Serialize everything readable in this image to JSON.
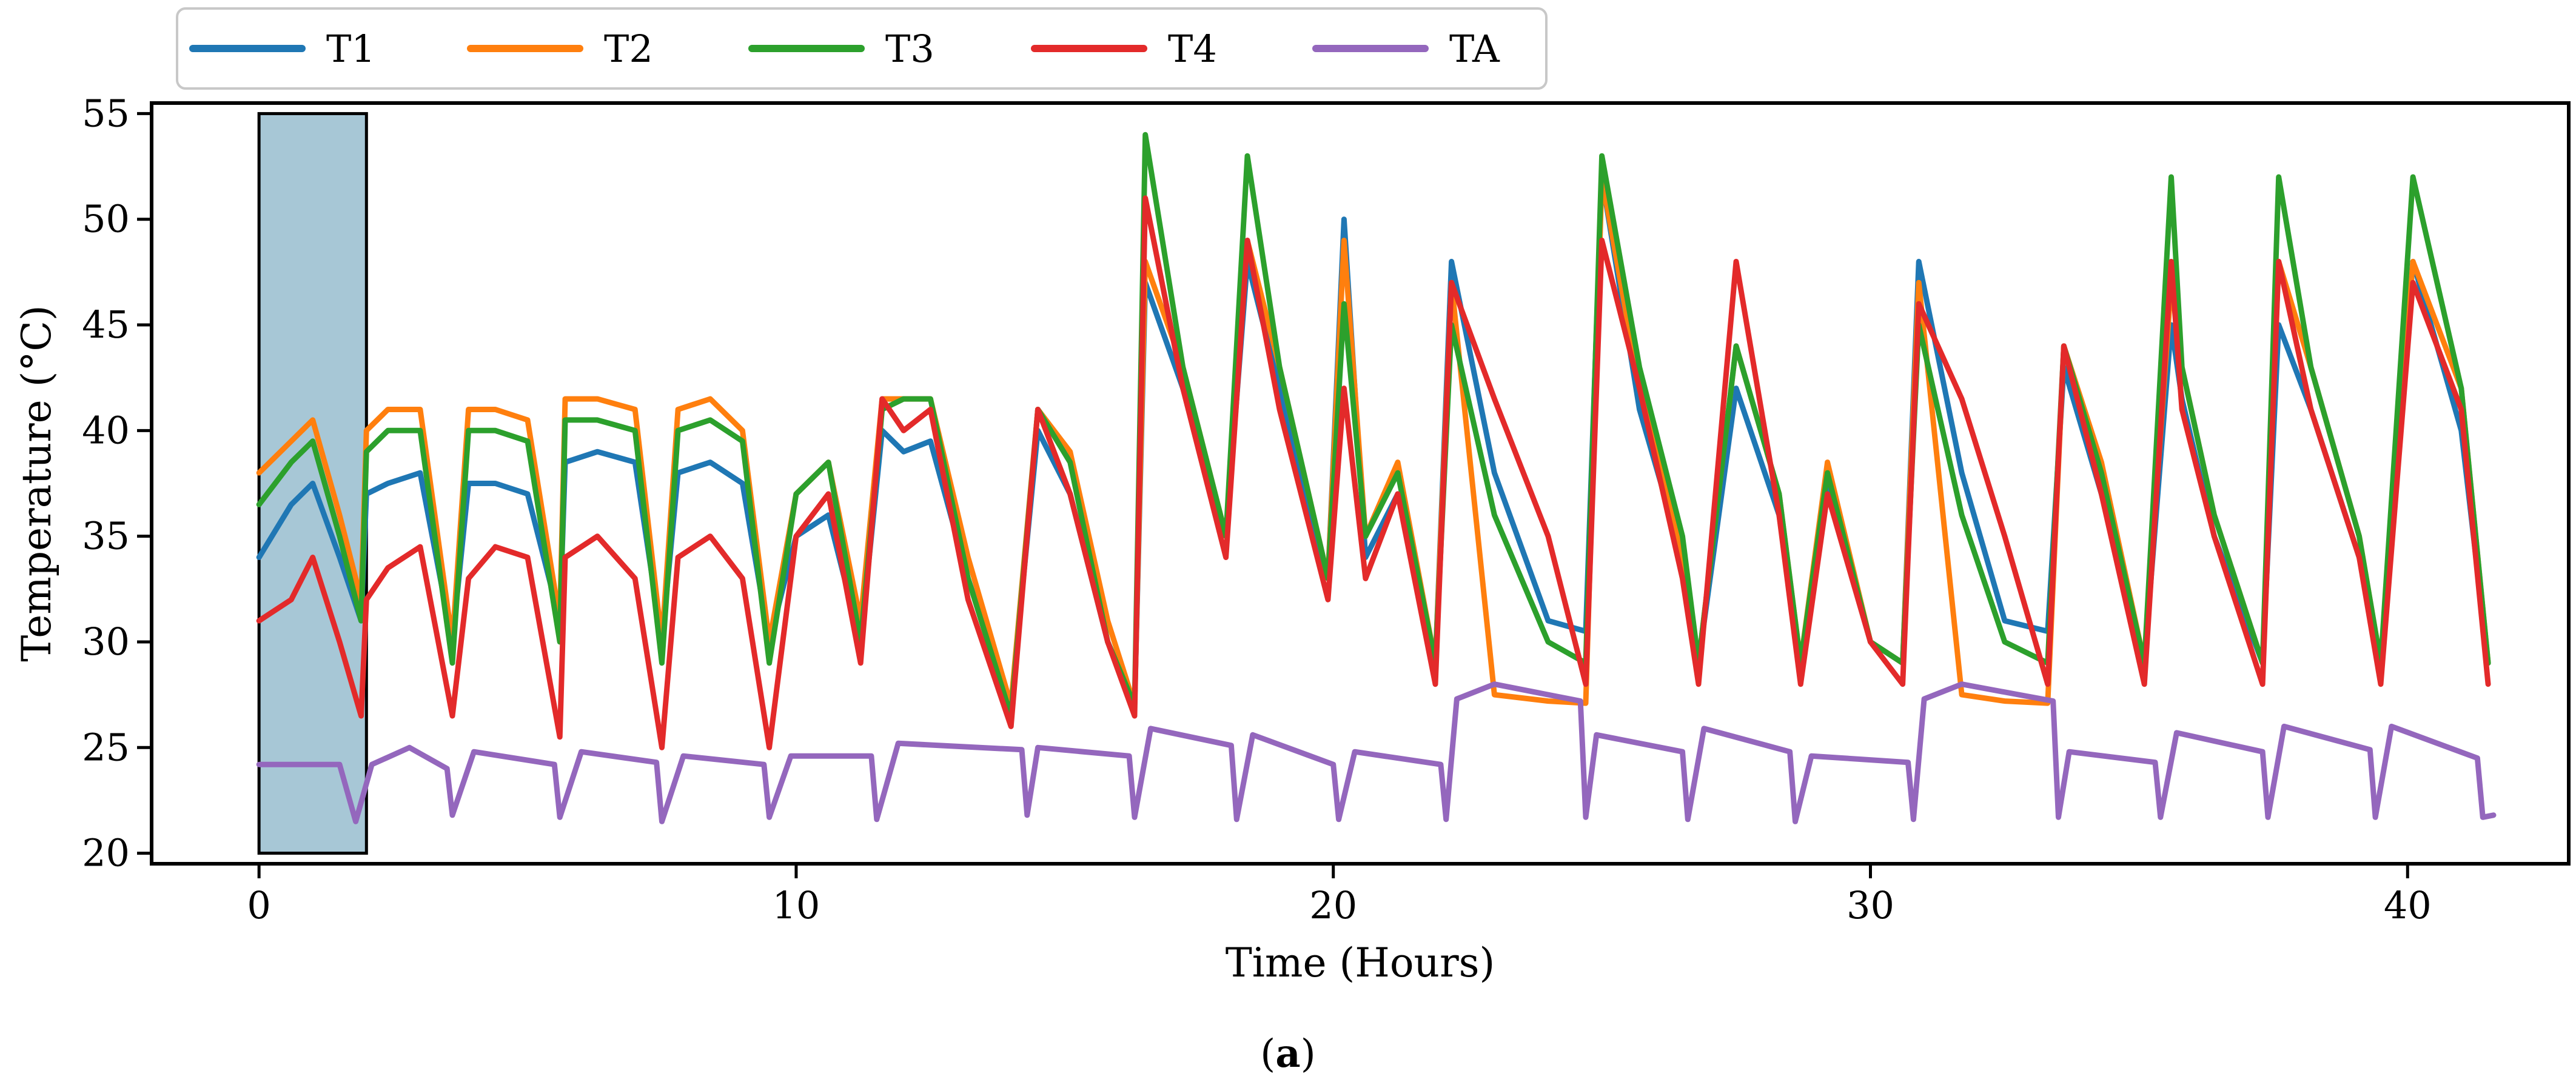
{
  "chart_data": {
    "type": "line",
    "title": "",
    "xlabel": "Time (Hours)",
    "ylabel": "Temperature (°C)",
    "xlim": [
      -2,
      43
    ],
    "ylim": [
      19.5,
      55.5
    ],
    "xticks": [
      0,
      10,
      20,
      30,
      40
    ],
    "yticks": [
      20,
      25,
      30,
      35,
      40,
      45,
      50,
      55
    ],
    "grid": false,
    "legend_position": "top-left, above plot",
    "highlight_region": {
      "x": [
        0,
        2
      ],
      "y": [
        20,
        55
      ],
      "color": "#a7c7d6"
    },
    "caption": {
      "open": "(",
      "letter": "a",
      "close": ")"
    },
    "series": [
      {
        "name": "T1",
        "color": "#1f77b4",
        "x": [
          0,
          0.6,
          1.0,
          1.5,
          1.9,
          2.0,
          2.4,
          3.0,
          3.6,
          3.9,
          4.4,
          5.0,
          5.6,
          5.7,
          6.3,
          7.0,
          7.5,
          7.8,
          8.4,
          9.0,
          9.5,
          10.0,
          10.6,
          11.2,
          11.6,
          12.0,
          12.5,
          13.2,
          14.0,
          14.5,
          15.1,
          15.8,
          16.3,
          16.5,
          17.2,
          18.0,
          18.4,
          19.0,
          19.9,
          20.2,
          20.6,
          21.2,
          21.9,
          22.2,
          23.0,
          24.0,
          24.7,
          25.0,
          25.7,
          26.5,
          26.8,
          27.5,
          28.3,
          28.7,
          29.2,
          30.0,
          30.6,
          30.9,
          31.7,
          32.5,
          33.3,
          33.6,
          34.3,
          35.1,
          35.6,
          35.8,
          36.4,
          37.3,
          37.6,
          38.2,
          39.1,
          39.5,
          40.1,
          41.0,
          41.5
        ],
        "values": [
          34,
          36.5,
          37.5,
          34,
          31,
          37,
          37.5,
          38,
          30,
          37.5,
          37.5,
          37,
          31,
          38.5,
          39,
          38.5,
          30,
          38,
          38.5,
          37.5,
          30,
          35,
          36,
          30,
          40,
          39,
          39.5,
          33,
          27,
          40,
          37,
          30,
          27,
          47,
          42,
          35,
          48,
          42,
          33,
          50,
          34,
          37,
          29,
          48,
          38,
          31,
          30.5,
          52,
          41,
          34,
          29,
          42,
          36,
          29,
          37.5,
          30,
          29,
          48,
          38,
          31,
          30.5,
          43,
          37,
          29,
          45,
          41.5,
          35,
          29,
          45,
          41,
          34,
          29,
          48,
          40,
          29
        ]
      },
      {
        "name": "T2",
        "color": "#ff7f0e",
        "x": [
          0,
          0.6,
          1.0,
          1.5,
          1.9,
          2.0,
          2.4,
          3.0,
          3.6,
          3.9,
          4.4,
          5.0,
          5.6,
          5.7,
          6.3,
          7.0,
          7.5,
          7.8,
          8.4,
          9.0,
          9.5,
          10.0,
          10.6,
          11.2,
          11.6,
          12.0,
          12.5,
          13.2,
          14.0,
          14.5,
          15.1,
          15.8,
          16.3,
          16.5,
          17.2,
          18.0,
          18.4,
          19.0,
          19.9,
          20.2,
          20.6,
          21.2,
          21.9,
          22.2,
          23.0,
          24.0,
          24.7,
          25.0,
          25.7,
          26.5,
          26.8,
          27.5,
          28.3,
          28.7,
          29.2,
          30.0,
          30.6,
          30.9,
          31.7,
          32.5,
          33.3,
          33.6,
          34.3,
          35.1,
          35.6,
          35.8,
          36.4,
          37.3,
          37.6,
          38.2,
          39.1,
          39.5,
          40.1,
          41.0,
          41.5
        ],
        "values": [
          38,
          39.5,
          40.5,
          36,
          32,
          40,
          41,
          41,
          30,
          41,
          41,
          40.5,
          31,
          41.5,
          41.5,
          41,
          30,
          41,
          41.5,
          40,
          30,
          37,
          38.5,
          31,
          41.5,
          41.5,
          41.5,
          34,
          27,
          41,
          39,
          31,
          27,
          48,
          43,
          35,
          49,
          43,
          33,
          49,
          35,
          38.5,
          29,
          47,
          27.5,
          27.2,
          27.1,
          52,
          42,
          34,
          29,
          44,
          37,
          29,
          38.5,
          30,
          29,
          47,
          27.5,
          27.2,
          27.1,
          44,
          38.5,
          29,
          47,
          43,
          36,
          29,
          48,
          43,
          35,
          29,
          48,
          42,
          29
        ]
      },
      {
        "name": "T3",
        "color": "#2ca02c",
        "x": [
          0,
          0.6,
          1.0,
          1.5,
          1.9,
          2.0,
          2.4,
          3.0,
          3.6,
          3.9,
          4.4,
          5.0,
          5.6,
          5.7,
          6.3,
          7.0,
          7.5,
          7.8,
          8.4,
          9.0,
          9.5,
          10.0,
          10.6,
          11.2,
          11.6,
          12.0,
          12.5,
          13.2,
          14.0,
          14.5,
          15.1,
          15.8,
          16.3,
          16.5,
          17.2,
          18.0,
          18.4,
          19.0,
          19.9,
          20.2,
          20.6,
          21.2,
          21.9,
          22.2,
          23.0,
          24.0,
          24.7,
          25.0,
          25.7,
          26.5,
          26.8,
          27.5,
          28.3,
          28.7,
          29.2,
          30.0,
          30.6,
          30.9,
          31.7,
          32.5,
          33.3,
          33.6,
          34.3,
          35.1,
          35.6,
          35.8,
          36.4,
          37.3,
          37.6,
          38.2,
          39.1,
          39.5,
          40.1,
          41.0,
          41.5
        ],
        "values": [
          36.5,
          38.5,
          39.5,
          35,
          31,
          39,
          40,
          40,
          29,
          40,
          40,
          39.5,
          30,
          40.5,
          40.5,
          40,
          29,
          40,
          40.5,
          39.5,
          29,
          37,
          38.5,
          30,
          41,
          41.5,
          41.5,
          33,
          26.5,
          41,
          38.5,
          30,
          27,
          54,
          43,
          35,
          53,
          43,
          33,
          46,
          35,
          38,
          29,
          45,
          36,
          30,
          29,
          53,
          43,
          35,
          29,
          44,
          37,
          29,
          38,
          30,
          29,
          45,
          36,
          30,
          29,
          44,
          38,
          29,
          52,
          43,
          36,
          29,
          52,
          43,
          35,
          29,
          52,
          42,
          29
        ]
      },
      {
        "name": "T4",
        "color": "#e32a2a",
        "x": [
          0,
          0.6,
          1.0,
          1.5,
          1.9,
          2.0,
          2.4,
          3.0,
          3.6,
          3.9,
          4.4,
          5.0,
          5.6,
          5.7,
          6.3,
          7.0,
          7.5,
          7.8,
          8.4,
          9.0,
          9.5,
          10.0,
          10.6,
          11.2,
          11.6,
          12.0,
          12.5,
          13.2,
          14.0,
          14.5,
          15.1,
          15.8,
          16.3,
          16.5,
          17.2,
          18.0,
          18.4,
          19.0,
          19.9,
          20.2,
          20.6,
          21.2,
          21.9,
          22.2,
          23.0,
          24.0,
          24.7,
          25.0,
          25.7,
          26.5,
          26.8,
          27.5,
          28.3,
          28.7,
          29.2,
          30.0,
          30.6,
          30.9,
          31.7,
          32.5,
          33.3,
          33.6,
          34.3,
          35.1,
          35.6,
          35.8,
          36.4,
          37.3,
          37.6,
          38.2,
          39.1,
          39.5,
          40.1,
          41.0,
          41.5
        ],
        "values": [
          31,
          32,
          34,
          30,
          26.5,
          32,
          33.5,
          34.5,
          26.5,
          33,
          34.5,
          34,
          25.5,
          34,
          35,
          33,
          25,
          34,
          35,
          33,
          25,
          35,
          37,
          29,
          41.5,
          40,
          41,
          32,
          26,
          41,
          37,
          30,
          26.5,
          51,
          42,
          34,
          49,
          41,
          32,
          42,
          33,
          37,
          28,
          47,
          41.5,
          35,
          28,
          49,
          42,
          33,
          28,
          48,
          36,
          28,
          37,
          30,
          28,
          46,
          41.5,
          35,
          28,
          44,
          37,
          28,
          48,
          41,
          35,
          28,
          48,
          41,
          34,
          28,
          47,
          41,
          28
        ]
      },
      {
        "name": "TA",
        "color": "#9467bd",
        "x": [
          0,
          1.5,
          1.8,
          2.1,
          2.8,
          3.5,
          3.6,
          4.0,
          5.5,
          5.6,
          6.0,
          7.4,
          7.5,
          7.9,
          9.4,
          9.5,
          9.9,
          11.4,
          11.5,
          11.9,
          14.2,
          14.3,
          14.5,
          16.2,
          16.3,
          16.6,
          18.1,
          18.2,
          18.5,
          20.0,
          20.1,
          20.4,
          22.0,
          22.1,
          22.3,
          23.0,
          24.6,
          24.7,
          24.9,
          26.5,
          26.6,
          26.9,
          28.5,
          28.6,
          28.9,
          30.7,
          30.8,
          31.0,
          31.7,
          33.4,
          33.5,
          33.7,
          35.3,
          35.4,
          35.7,
          37.3,
          37.4,
          37.7,
          39.3,
          39.4,
          39.7,
          41.3,
          41.4,
          41.6
        ],
        "values": [
          24.2,
          24.2,
          21.5,
          24.2,
          25,
          24,
          21.8,
          24.8,
          24.2,
          21.7,
          24.8,
          24.3,
          21.5,
          24.6,
          24.2,
          21.7,
          24.6,
          24.6,
          21.6,
          25.2,
          24.9,
          21.8,
          25,
          24.6,
          21.7,
          25.9,
          25.1,
          21.6,
          25.6,
          24.2,
          21.6,
          24.8,
          24.2,
          21.6,
          27.3,
          28,
          27.2,
          21.7,
          25.6,
          24.8,
          21.6,
          25.9,
          24.8,
          21.5,
          24.6,
          24.3,
          21.6,
          27.3,
          28,
          27.2,
          21.7,
          24.8,
          24.3,
          21.7,
          25.7,
          24.8,
          21.7,
          26,
          24.9,
          21.7,
          26,
          24.5,
          21.7,
          21.8
        ]
      }
    ]
  }
}
